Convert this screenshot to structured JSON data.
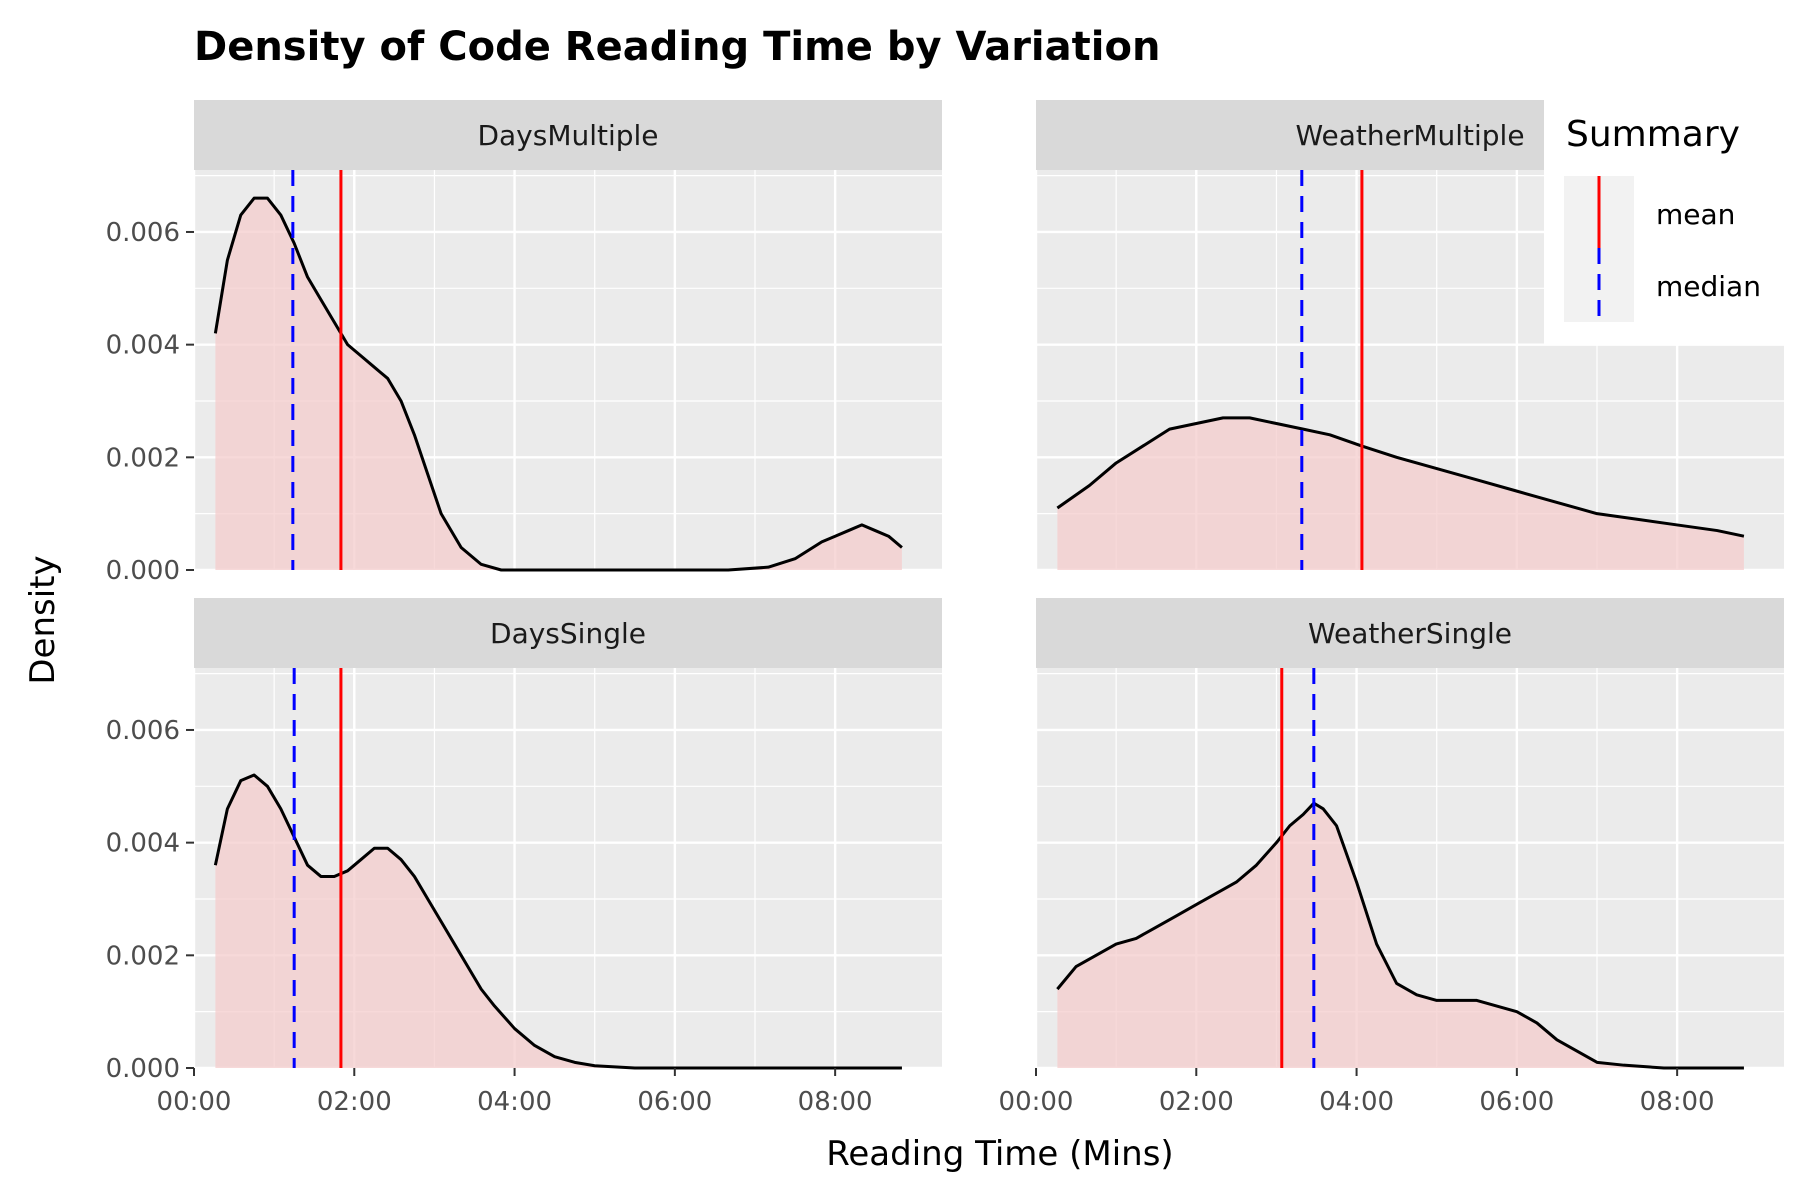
{
  "chart_data": {
    "type": "area",
    "title": "Density of Code Reading Time by Variation",
    "xlabel": "Reading Time (Mins)",
    "ylabel": "Density",
    "x_unit": "seconds",
    "xlim": [
      0,
      560
    ],
    "ylim": [
      0,
      0.0071
    ],
    "x_ticks": [
      {
        "value": 0,
        "label": "00:00"
      },
      {
        "value": 120,
        "label": "02:00"
      },
      {
        "value": 240,
        "label": "04:00"
      },
      {
        "value": 360,
        "label": "06:00"
      },
      {
        "value": 480,
        "label": "08:00"
      }
    ],
    "y_ticks": [
      {
        "value": 0.0,
        "label": "0.000"
      },
      {
        "value": 0.002,
        "label": "0.002"
      },
      {
        "value": 0.004,
        "label": "0.004"
      },
      {
        "value": 0.006,
        "label": "0.006"
      }
    ],
    "grid": true,
    "fill_color": "#f4cccc",
    "line_color": "#000000",
    "legend": {
      "title": "Summary",
      "position": "top-right",
      "items": [
        {
          "label": "mean",
          "color": "#ff0000",
          "dash": "solid"
        },
        {
          "label": "median",
          "color": "#0000ff",
          "dash": "dashed"
        }
      ]
    },
    "panels": [
      {
        "name": "DaysMultiple",
        "mean": 110,
        "median": 74,
        "x": [
          16,
          25,
          35,
          45,
          55,
          65,
          75,
          85,
          95,
          105,
          115,
          125,
          135,
          145,
          155,
          165,
          175,
          185,
          200,
          215,
          230,
          250,
          270,
          300,
          350,
          400,
          430,
          450,
          470,
          480,
          490,
          500,
          510,
          520,
          530
        ],
        "y": [
          0.0042,
          0.0055,
          0.0063,
          0.0066,
          0.0066,
          0.0063,
          0.0058,
          0.0052,
          0.0048,
          0.0044,
          0.004,
          0.0038,
          0.0036,
          0.0034,
          0.003,
          0.0024,
          0.0017,
          0.001,
          0.0004,
          0.0001,
          0.0,
          0.0,
          0.0,
          0.0,
          0.0,
          0.0,
          5e-05,
          0.0002,
          0.0005,
          0.0006,
          0.0007,
          0.0008,
          0.0007,
          0.0006,
          0.0004
        ]
      },
      {
        "name": "WeatherMultiple",
        "mean": 244,
        "median": 199,
        "x": [
          16,
          40,
          60,
          80,
          100,
          120,
          140,
          160,
          180,
          200,
          220,
          244,
          270,
          300,
          330,
          360,
          390,
          420,
          450,
          480,
          510,
          530
        ],
        "y": [
          0.0011,
          0.0015,
          0.0019,
          0.0022,
          0.0025,
          0.0026,
          0.0027,
          0.0027,
          0.0026,
          0.0025,
          0.0024,
          0.0022,
          0.002,
          0.0018,
          0.0016,
          0.0014,
          0.0012,
          0.001,
          0.0009,
          0.0008,
          0.0007,
          0.0006
        ]
      },
      {
        "name": "DaysSingle",
        "mean": 110,
        "median": 75,
        "x": [
          16,
          25,
          35,
          45,
          55,
          65,
          75,
          85,
          95,
          105,
          115,
          125,
          135,
          145,
          155,
          165,
          175,
          185,
          195,
          205,
          215,
          225,
          240,
          255,
          270,
          285,
          300,
          330,
          360,
          400,
          450,
          500,
          530
        ],
        "y": [
          0.0036,
          0.0046,
          0.0051,
          0.0052,
          0.005,
          0.0046,
          0.0041,
          0.0036,
          0.0034,
          0.0034,
          0.0035,
          0.0037,
          0.0039,
          0.0039,
          0.0037,
          0.0034,
          0.003,
          0.0026,
          0.0022,
          0.0018,
          0.0014,
          0.0011,
          0.0007,
          0.0004,
          0.0002,
          0.0001,
          4e-05,
          0.0,
          0.0,
          0.0,
          0.0,
          0.0,
          0.0
        ]
      },
      {
        "name": "WeatherSingle",
        "mean": 184,
        "median": 208,
        "x": [
          16,
          30,
          45,
          60,
          75,
          90,
          105,
          120,
          135,
          150,
          165,
          180,
          190,
          200,
          208,
          215,
          225,
          240,
          255,
          270,
          285,
          300,
          315,
          330,
          345,
          360,
          375,
          390,
          405,
          420,
          440,
          470,
          500,
          530
        ],
        "y": [
          0.0014,
          0.0018,
          0.002,
          0.0022,
          0.0023,
          0.0025,
          0.0027,
          0.0029,
          0.0031,
          0.0033,
          0.0036,
          0.004,
          0.0043,
          0.0045,
          0.0047,
          0.0046,
          0.0043,
          0.0033,
          0.0022,
          0.0015,
          0.0013,
          0.0012,
          0.0012,
          0.0012,
          0.0011,
          0.001,
          0.0008,
          0.0005,
          0.0003,
          0.0001,
          5e-05,
          0.0,
          0.0,
          0.0
        ]
      }
    ]
  }
}
